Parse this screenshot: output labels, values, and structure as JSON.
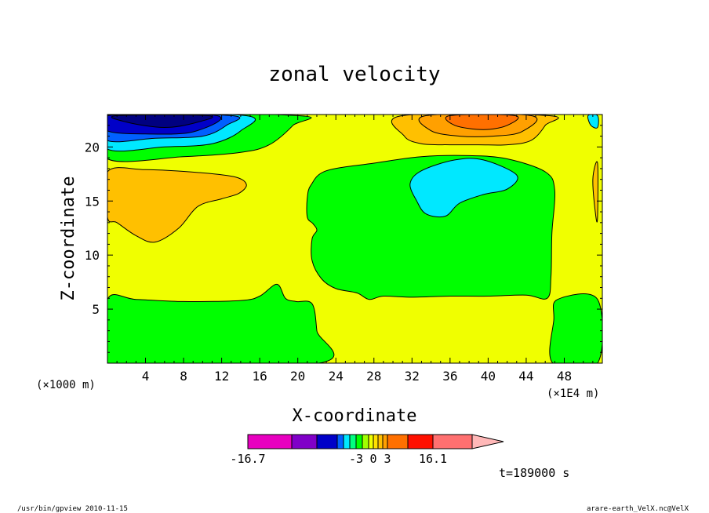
{
  "chart_data": {
    "type": "heatmap",
    "title": "zonal velocity",
    "xlabel": "X-coordinate",
    "ylabel": "Z-coordinate",
    "x_unit": "(×1E4 m)",
    "y_unit": "(×1000 m)",
    "xlim": [
      0,
      52
    ],
    "ylim": [
      0,
      23
    ],
    "x_ticks": [
      4,
      8,
      12,
      16,
      20,
      24,
      28,
      32,
      36,
      40,
      44,
      48
    ],
    "y_ticks": [
      5,
      10,
      15,
      20
    ],
    "time_label": "t=189000 s",
    "colorbar": {
      "min_label": "-16.7",
      "max_label": "16.1",
      "mid_labels": [
        "-3",
        "0",
        "3"
      ],
      "levels": [
        {
          "from": -16.7,
          "to": -12,
          "color": "#e800c0"
        },
        {
          "from": -12,
          "to": -9,
          "color": "#8000c8"
        },
        {
          "from": -9,
          "to": -6,
          "color": "#0000c8"
        },
        {
          "from": -6,
          "to": -5,
          "color": "#0060ff"
        },
        {
          "from": -5,
          "to": -4,
          "color": "#00e8ff"
        },
        {
          "from": -4,
          "to": -3,
          "color": "#00ff80"
        },
        {
          "from": -3,
          "to": -2,
          "color": "#00ff00"
        },
        {
          "from": -2,
          "to": -1,
          "color": "#a0ff00"
        },
        {
          "from": -1,
          "to": 0,
          "color": "#f0ff00"
        },
        {
          "from": 0,
          "to": 1,
          "color": "#ffe000"
        },
        {
          "from": 1,
          "to": 2,
          "color": "#ffc000"
        },
        {
          "from": 2,
          "to": 3,
          "color": "#ffa000"
        },
        {
          "from": 3,
          "to": 6,
          "color": "#ff7000"
        },
        {
          "from": 6,
          "to": 9,
          "color": "#ff1000"
        },
        {
          "from": 9,
          "to": 16.1,
          "color": "#ff7070"
        }
      ],
      "over_color": "#ffb8b8"
    },
    "regions": [
      {
        "name": "lower-left-negative",
        "color": "#00ff00",
        "points": [
          [
            0,
            0
          ],
          [
            0,
            5.9
          ],
          [
            3,
            5.9
          ],
          [
            8,
            5.7
          ],
          [
            14,
            5.8
          ],
          [
            16,
            6.2
          ],
          [
            17.8,
            7.3
          ],
          [
            18.7,
            6
          ],
          [
            19.8,
            5.7
          ],
          [
            21.5,
            5.5
          ],
          [
            22,
            3
          ],
          [
            22.2,
            0
          ]
        ]
      },
      {
        "name": "lower-right-negative",
        "color": "#00ff00",
        "points": [
          [
            46.8,
            0
          ],
          [
            46.9,
            4
          ],
          [
            47.3,
            5.9
          ],
          [
            51.5,
            5.9
          ],
          [
            51.5,
            0
          ]
        ]
      },
      {
        "name": "mid-negative",
        "color": "#00ff00",
        "points": [
          [
            21.4,
            16.5
          ],
          [
            23,
            17.8
          ],
          [
            28,
            18.5
          ],
          [
            33,
            19.1
          ],
          [
            38,
            19.2
          ],
          [
            42,
            18.9
          ],
          [
            46,
            17.7
          ],
          [
            47,
            16
          ],
          [
            46.7,
            12
          ],
          [
            46.6,
            8
          ],
          [
            46.2,
            6
          ],
          [
            44,
            6.3
          ],
          [
            40,
            6.2
          ],
          [
            36,
            6.2
          ],
          [
            32,
            6.1
          ],
          [
            29,
            6.2
          ],
          [
            27.5,
            5.9
          ],
          [
            26.2,
            6.5
          ],
          [
            24,
            6.9
          ],
          [
            22.5,
            7.8
          ],
          [
            21.5,
            9.5
          ],
          [
            21.5,
            11.5
          ],
          [
            22,
            12.3
          ],
          [
            21.6,
            12.9
          ],
          [
            21,
            13.5
          ],
          [
            21,
            15.3
          ]
        ]
      },
      {
        "name": "mid-strong-negative",
        "color": "#00e8ff",
        "points": [
          [
            31.8,
            16.6
          ],
          [
            33,
            17.8
          ],
          [
            36.5,
            18.8
          ],
          [
            39.5,
            18.8
          ],
          [
            43,
            17.4
          ],
          [
            42,
            16.1
          ],
          [
            39.5,
            15.6
          ],
          [
            37,
            14.8
          ],
          [
            35.5,
            13.6
          ],
          [
            33.5,
            13.8
          ],
          [
            32.5,
            15
          ]
        ]
      },
      {
        "name": "upper-band-weak-negative",
        "color": "#00ff00",
        "points": [
          [
            0,
            18.9
          ],
          [
            8,
            19.1
          ],
          [
            14,
            19.5
          ],
          [
            17,
            20.2
          ],
          [
            19.5,
            22
          ],
          [
            20,
            22.9
          ],
          [
            0,
            22.9
          ]
        ]
      },
      {
        "name": "upper-left-negative",
        "color": "#00e8ff",
        "points": [
          [
            0,
            19.8
          ],
          [
            6,
            20
          ],
          [
            11,
            20.3
          ],
          [
            14,
            21.5
          ],
          [
            14.5,
            22.9
          ],
          [
            0,
            22.9
          ]
        ]
      },
      {
        "name": "upper-left-stronger-negative",
        "color": "#0060ff",
        "points": [
          [
            0,
            20.6
          ],
          [
            5,
            20.8
          ],
          [
            10,
            21
          ],
          [
            12.5,
            22
          ],
          [
            13,
            22.9
          ],
          [
            0,
            22.9
          ]
        ]
      },
      {
        "name": "upper-left-strong-negative",
        "color": "#0000c8",
        "points": [
          [
            0,
            21.5
          ],
          [
            4,
            21.2
          ],
          [
            9,
            21.4
          ],
          [
            11.5,
            22.9
          ],
          [
            0,
            22.9
          ]
        ]
      },
      {
        "name": "upper-left-core",
        "color": "#000080",
        "points": [
          [
            1,
            22.9
          ],
          [
            2,
            22.3
          ],
          [
            6,
            21.8
          ],
          [
            9.5,
            22.3
          ],
          [
            10.5,
            22.9
          ]
        ]
      },
      {
        "name": "left-positive",
        "color": "#ffc000",
        "points": [
          [
            0,
            17.7
          ],
          [
            4,
            17.9
          ],
          [
            10,
            17.6
          ],
          [
            13.5,
            17.2
          ],
          [
            14.6,
            16.5
          ],
          [
            13.8,
            15.7
          ],
          [
            12,
            15.2
          ],
          [
            9.5,
            14.5
          ],
          [
            7.5,
            12.5
          ],
          [
            5,
            11.2
          ],
          [
            3,
            11.8
          ],
          [
            1,
            13
          ],
          [
            0,
            13.5
          ]
        ]
      },
      {
        "name": "upper-right-positive",
        "color": "#ffc000",
        "points": [
          [
            31,
            22.9
          ],
          [
            31.2,
            21
          ],
          [
            33,
            20.3
          ],
          [
            36,
            20.2
          ],
          [
            39,
            20.2
          ],
          [
            42,
            20.2
          ],
          [
            44.5,
            20.6
          ],
          [
            46,
            22
          ],
          [
            46.3,
            22.9
          ]
        ]
      },
      {
        "name": "upper-right-positive-2",
        "color": "#ffa000",
        "points": [
          [
            33.5,
            22.9
          ],
          [
            34,
            21.5
          ],
          [
            37,
            21
          ],
          [
            40.5,
            21
          ],
          [
            43.5,
            21.4
          ],
          [
            44.5,
            22.9
          ]
        ]
      },
      {
        "name": "upper-right-core",
        "color": "#ff7000",
        "points": [
          [
            36,
            22.9
          ],
          [
            36.5,
            22
          ],
          [
            39.5,
            21.6
          ],
          [
            42,
            22
          ],
          [
            42.8,
            22.9
          ]
        ]
      },
      {
        "name": "right-edge-positive",
        "color": "#ffc000",
        "points": [
          [
            51.5,
            18.5
          ],
          [
            51,
            17
          ],
          [
            51.3,
            13.7
          ],
          [
            51.5,
            13.5
          ]
        ]
      },
      {
        "name": "right-edge-upper-negative",
        "color": "#00e8ff",
        "points": [
          [
            50.5,
            22.9
          ],
          [
            50.8,
            22
          ],
          [
            51.5,
            21.8
          ],
          [
            51.5,
            22.9
          ]
        ]
      }
    ]
  },
  "footer": {
    "left": "/usr/bin/gpview  2010-11-15",
    "right": "arare-earth_VelX.nc@VelX"
  }
}
